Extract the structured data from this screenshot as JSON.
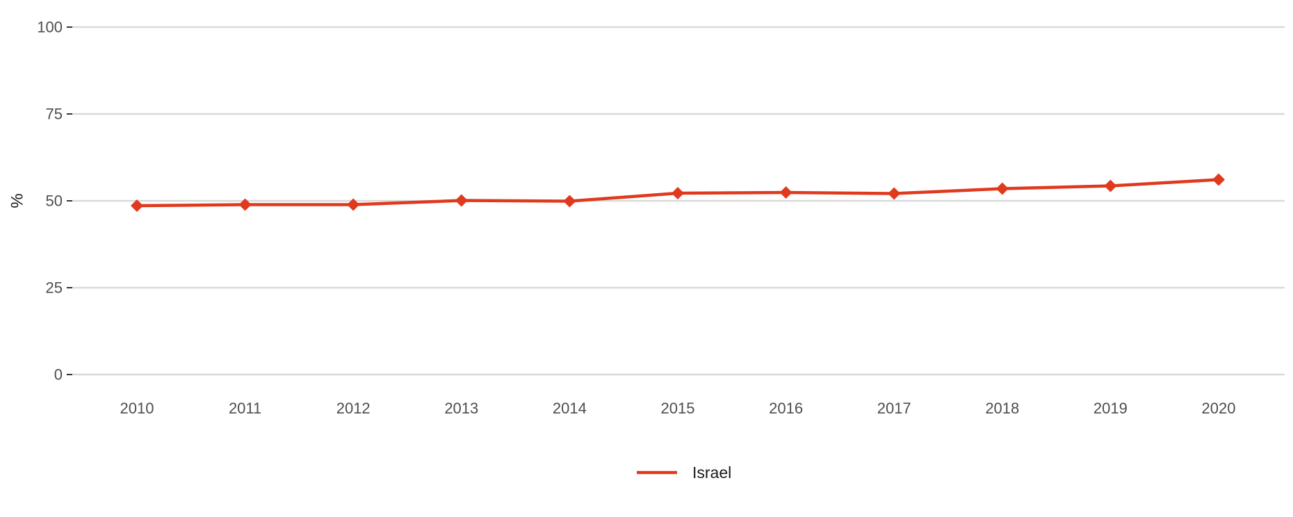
{
  "chart_data": {
    "type": "line",
    "title": "",
    "xlabel": "",
    "ylabel": "%",
    "ylim": [
      0,
      100
    ],
    "yticks": [
      "0",
      "25",
      "50",
      "75",
      "100"
    ],
    "x": [
      "2010",
      "2011",
      "2012",
      "2013",
      "2014",
      "2015",
      "2016",
      "2017",
      "2018",
      "2019",
      "2020"
    ],
    "series": [
      {
        "name": "Israel",
        "color": "#e03a1e",
        "marker": "diamond",
        "values": [
          48.6,
          48.9,
          48.9,
          50.1,
          49.9,
          52.2,
          52.4,
          52.1,
          53.5,
          54.3,
          56.1
        ]
      }
    ],
    "grid": "horizontal",
    "legend": "bottom-center"
  }
}
